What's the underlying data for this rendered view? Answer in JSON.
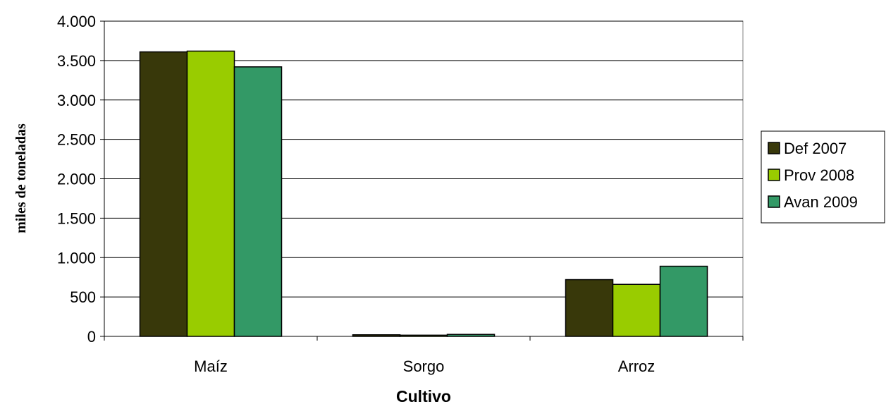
{
  "chart_data": {
    "type": "bar",
    "categories": [
      "Maíz",
      "Sorgo",
      "Arroz"
    ],
    "series": [
      {
        "name": "Def 2007",
        "values": [
          3610,
          20,
          720
        ],
        "color": "#38380A"
      },
      {
        "name": "Prov 2008",
        "values": [
          3620,
          15,
          660
        ],
        "color": "#99CC00"
      },
      {
        "name": "Avan 2009",
        "values": [
          3420,
          25,
          890
        ],
        "color": "#339966"
      }
    ],
    "title": "",
    "xlabel": "Cultivo",
    "ylabel": "miles de toneladas",
    "ylim": [
      0,
      4000
    ],
    "yticks": [
      0,
      500,
      1000,
      1500,
      2000,
      2500,
      3000,
      3500,
      4000
    ],
    "ytick_labels": [
      "0",
      "500",
      "1.000",
      "1.500",
      "2.000",
      "2.500",
      "3.000",
      "3.500",
      "4.000"
    ],
    "grid": true,
    "legend_position": "right"
  }
}
